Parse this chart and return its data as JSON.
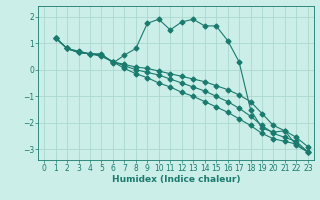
{
  "xlabel": "Humidex (Indice chaleur)",
  "bg_color": "#cceee8",
  "grid_color": "#aad8d0",
  "line_color": "#1a7a6e",
  "xlim": [
    -0.5,
    23.5
  ],
  "ylim": [
    -3.4,
    2.4
  ],
  "xticks": [
    0,
    1,
    2,
    3,
    4,
    5,
    6,
    7,
    8,
    9,
    10,
    11,
    12,
    13,
    14,
    15,
    16,
    17,
    18,
    19,
    20,
    21,
    22,
    23
  ],
  "yticks": [
    -3,
    -2,
    -1,
    0,
    1,
    2
  ],
  "line1_x": [
    1,
    2,
    3,
    4,
    5,
    6,
    7,
    8,
    9,
    10,
    11,
    12,
    13,
    14,
    15,
    16,
    17,
    18,
    19,
    20,
    21,
    22,
    23
  ],
  "line1_y": [
    1.2,
    0.8,
    0.7,
    0.6,
    0.6,
    0.25,
    0.55,
    0.8,
    1.75,
    1.9,
    1.5,
    1.8,
    1.9,
    1.65,
    1.65,
    1.1,
    0.3,
    -1.5,
    -2.2,
    -2.35,
    -2.3,
    -2.85,
    -3.1
  ],
  "line2_x": [
    1,
    2,
    3,
    4,
    5,
    6,
    7,
    8,
    9,
    10,
    11,
    12,
    13,
    14,
    15,
    16,
    17,
    18,
    19,
    20,
    21,
    22,
    23
  ],
  "line2_y": [
    1.2,
    0.8,
    0.65,
    0.6,
    0.55,
    0.3,
    0.2,
    0.1,
    0.05,
    -0.05,
    -0.15,
    -0.25,
    -0.35,
    -0.45,
    -0.6,
    -0.75,
    -0.95,
    -1.2,
    -1.65,
    -2.1,
    -2.3,
    -2.55,
    -2.9
  ],
  "line3_x": [
    1,
    2,
    3,
    4,
    5,
    6,
    7,
    8,
    9,
    10,
    11,
    12,
    13,
    14,
    15,
    16,
    17,
    18,
    19,
    20,
    21,
    22,
    23
  ],
  "line3_y": [
    1.2,
    0.8,
    0.65,
    0.6,
    0.55,
    0.3,
    0.15,
    0.0,
    -0.1,
    -0.2,
    -0.35,
    -0.5,
    -0.65,
    -0.8,
    -1.0,
    -1.2,
    -1.45,
    -1.75,
    -2.1,
    -2.4,
    -2.55,
    -2.7,
    -3.1
  ],
  "line4_x": [
    1,
    2,
    3,
    4,
    5,
    6,
    7,
    8,
    9,
    10,
    11,
    12,
    13,
    14,
    15,
    16,
    17,
    18,
    19,
    20,
    21,
    22,
    23
  ],
  "line4_y": [
    1.2,
    0.8,
    0.65,
    0.6,
    0.5,
    0.3,
    0.05,
    -0.15,
    -0.3,
    -0.5,
    -0.65,
    -0.85,
    -1.0,
    -1.2,
    -1.4,
    -1.6,
    -1.85,
    -2.1,
    -2.4,
    -2.6,
    -2.7,
    -2.8,
    -3.1
  ]
}
